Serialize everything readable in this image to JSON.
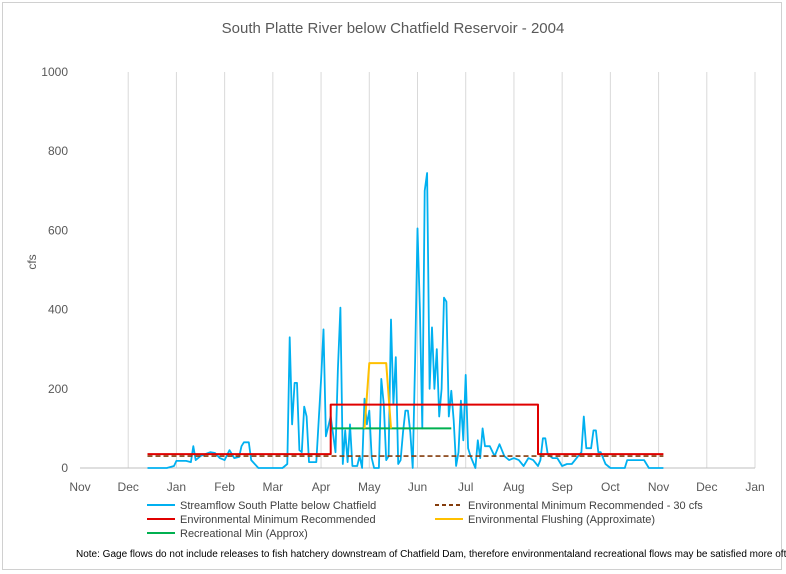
{
  "chart_data": {
    "type": "line",
    "title": "South Platte River below Chatfield Reservoir - 2004",
    "xlabel": "",
    "ylabel": "cfs",
    "xlim": [
      "Nov",
      "Jan"
    ],
    "ylim": [
      0,
      1000
    ],
    "y_ticks": [
      0,
      200,
      400,
      600,
      800,
      1000
    ],
    "x_ticks": [
      "Nov",
      "Dec",
      "Jan",
      "Feb",
      "Mar",
      "Apr",
      "May",
      "Jun",
      "Jul",
      "Aug",
      "Sep",
      "Oct",
      "Nov",
      "Dec",
      "Jan"
    ],
    "grid": "vertical",
    "legend_position": "bottom",
    "series": [
      {
        "name": "Streamflow South Platte below Chatfield",
        "color": "#00b0f0",
        "style": "solid",
        "points": [
          [
            1.4,
            0
          ],
          [
            1.8,
            0
          ],
          [
            1.95,
            5
          ],
          [
            2.0,
            18
          ],
          [
            2.2,
            18
          ],
          [
            2.3,
            15
          ],
          [
            2.35,
            55
          ],
          [
            2.4,
            20
          ],
          [
            2.5,
            30
          ],
          [
            2.6,
            35
          ],
          [
            2.7,
            40
          ],
          [
            2.8,
            38
          ],
          [
            2.9,
            25
          ],
          [
            3.0,
            20
          ],
          [
            3.1,
            45
          ],
          [
            3.2,
            25
          ],
          [
            3.3,
            28
          ],
          [
            3.35,
            55
          ],
          [
            3.4,
            65
          ],
          [
            3.5,
            65
          ],
          [
            3.55,
            20
          ],
          [
            3.7,
            0
          ],
          [
            4.2,
            0
          ],
          [
            4.3,
            10
          ],
          [
            4.35,
            330
          ],
          [
            4.4,
            110
          ],
          [
            4.45,
            215
          ],
          [
            4.5,
            215
          ],
          [
            4.55,
            45
          ],
          [
            4.6,
            40
          ],
          [
            4.65,
            155
          ],
          [
            4.7,
            130
          ],
          [
            4.75,
            15
          ],
          [
            4.9,
            15
          ],
          [
            4.95,
            120
          ],
          [
            5.0,
            225
          ],
          [
            5.05,
            350
          ],
          [
            5.1,
            80
          ],
          [
            5.2,
            130
          ],
          [
            5.3,
            40
          ],
          [
            5.35,
            250
          ],
          [
            5.4,
            405
          ],
          [
            5.45,
            10
          ],
          [
            5.5,
            95
          ],
          [
            5.55,
            15
          ],
          [
            5.6,
            110
          ],
          [
            5.65,
            5
          ],
          [
            5.75,
            5
          ],
          [
            5.8,
            30
          ],
          [
            5.85,
            0
          ],
          [
            5.9,
            175
          ],
          [
            5.95,
            110
          ],
          [
            6.0,
            145
          ],
          [
            6.05,
            25
          ],
          [
            6.1,
            0
          ],
          [
            6.2,
            0
          ],
          [
            6.25,
            225
          ],
          [
            6.3,
            160
          ],
          [
            6.35,
            20
          ],
          [
            6.4,
            30
          ],
          [
            6.45,
            375
          ],
          [
            6.5,
            160
          ],
          [
            6.55,
            280
          ],
          [
            6.6,
            10
          ],
          [
            6.65,
            20
          ],
          [
            6.7,
            90
          ],
          [
            6.75,
            145
          ],
          [
            6.8,
            145
          ],
          [
            6.85,
            90
          ],
          [
            6.9,
            0
          ],
          [
            6.95,
            270
          ],
          [
            7.0,
            605
          ],
          [
            7.05,
            400
          ],
          [
            7.1,
            100
          ],
          [
            7.15,
            700
          ],
          [
            7.2,
            745
          ],
          [
            7.25,
            200
          ],
          [
            7.3,
            355
          ],
          [
            7.35,
            200
          ],
          [
            7.4,
            300
          ],
          [
            7.45,
            130
          ],
          [
            7.5,
            200
          ],
          [
            7.55,
            430
          ],
          [
            7.6,
            420
          ],
          [
            7.65,
            130
          ],
          [
            7.7,
            195
          ],
          [
            7.75,
            120
          ],
          [
            7.8,
            5
          ],
          [
            7.85,
            40
          ],
          [
            7.9,
            170
          ],
          [
            7.95,
            70
          ],
          [
            8.0,
            235
          ],
          [
            8.05,
            50
          ],
          [
            8.1,
            30
          ],
          [
            8.2,
            0
          ],
          [
            8.25,
            70
          ],
          [
            8.3,
            25
          ],
          [
            8.35,
            100
          ],
          [
            8.4,
            55
          ],
          [
            8.5,
            55
          ],
          [
            8.6,
            30
          ],
          [
            8.7,
            60
          ],
          [
            8.8,
            30
          ],
          [
            8.9,
            20
          ],
          [
            9.0,
            25
          ],
          [
            9.1,
            20
          ],
          [
            9.2,
            5
          ],
          [
            9.3,
            25
          ],
          [
            9.4,
            20
          ],
          [
            9.5,
            5
          ],
          [
            9.55,
            20
          ],
          [
            9.6,
            75
          ],
          [
            9.65,
            75
          ],
          [
            9.7,
            35
          ],
          [
            9.8,
            25
          ],
          [
            9.9,
            25
          ],
          [
            10.0,
            5
          ],
          [
            10.1,
            10
          ],
          [
            10.2,
            10
          ],
          [
            10.3,
            25
          ],
          [
            10.4,
            40
          ],
          [
            10.45,
            130
          ],
          [
            10.5,
            50
          ],
          [
            10.6,
            50
          ],
          [
            10.65,
            95
          ],
          [
            10.7,
            95
          ],
          [
            10.75,
            40
          ],
          [
            10.8,
            40
          ],
          [
            10.9,
            10
          ],
          [
            11.0,
            0
          ],
          [
            11.3,
            0
          ],
          [
            11.35,
            20
          ],
          [
            11.7,
            20
          ],
          [
            11.8,
            0
          ],
          [
            12.1,
            0
          ]
        ]
      },
      {
        "name": "Environmental Minimum Recommended - 30 cfs",
        "color": "#843c0c",
        "style": "dashed",
        "points": [
          [
            1.4,
            30
          ],
          [
            12.1,
            30
          ]
        ]
      },
      {
        "name": "Environmental Minimum Recommended",
        "color": "#e00000",
        "style": "solid",
        "points": [
          [
            1.4,
            35
          ],
          [
            5.2,
            35
          ],
          [
            5.2,
            160
          ],
          [
            9.5,
            160
          ],
          [
            9.5,
            35
          ],
          [
            12.1,
            35
          ]
        ]
      },
      {
        "name": "Environmental Flushing (Approximate)",
        "color": "#ffc000",
        "style": "solid",
        "points": [
          [
            5.9,
            100
          ],
          [
            6.0,
            265
          ],
          [
            6.35,
            265
          ],
          [
            6.45,
            100
          ]
        ]
      },
      {
        "name": "Recreational Min (Approx)",
        "color": "#00b050",
        "style": "solid",
        "points": [
          [
            5.2,
            100
          ],
          [
            7.7,
            100
          ]
        ]
      }
    ],
    "note": "Note: Gage flows do not include releases to fish hatchery downstream of Chatfield Dam, therefore environmentaland recreational flows may be satisfied more often."
  }
}
